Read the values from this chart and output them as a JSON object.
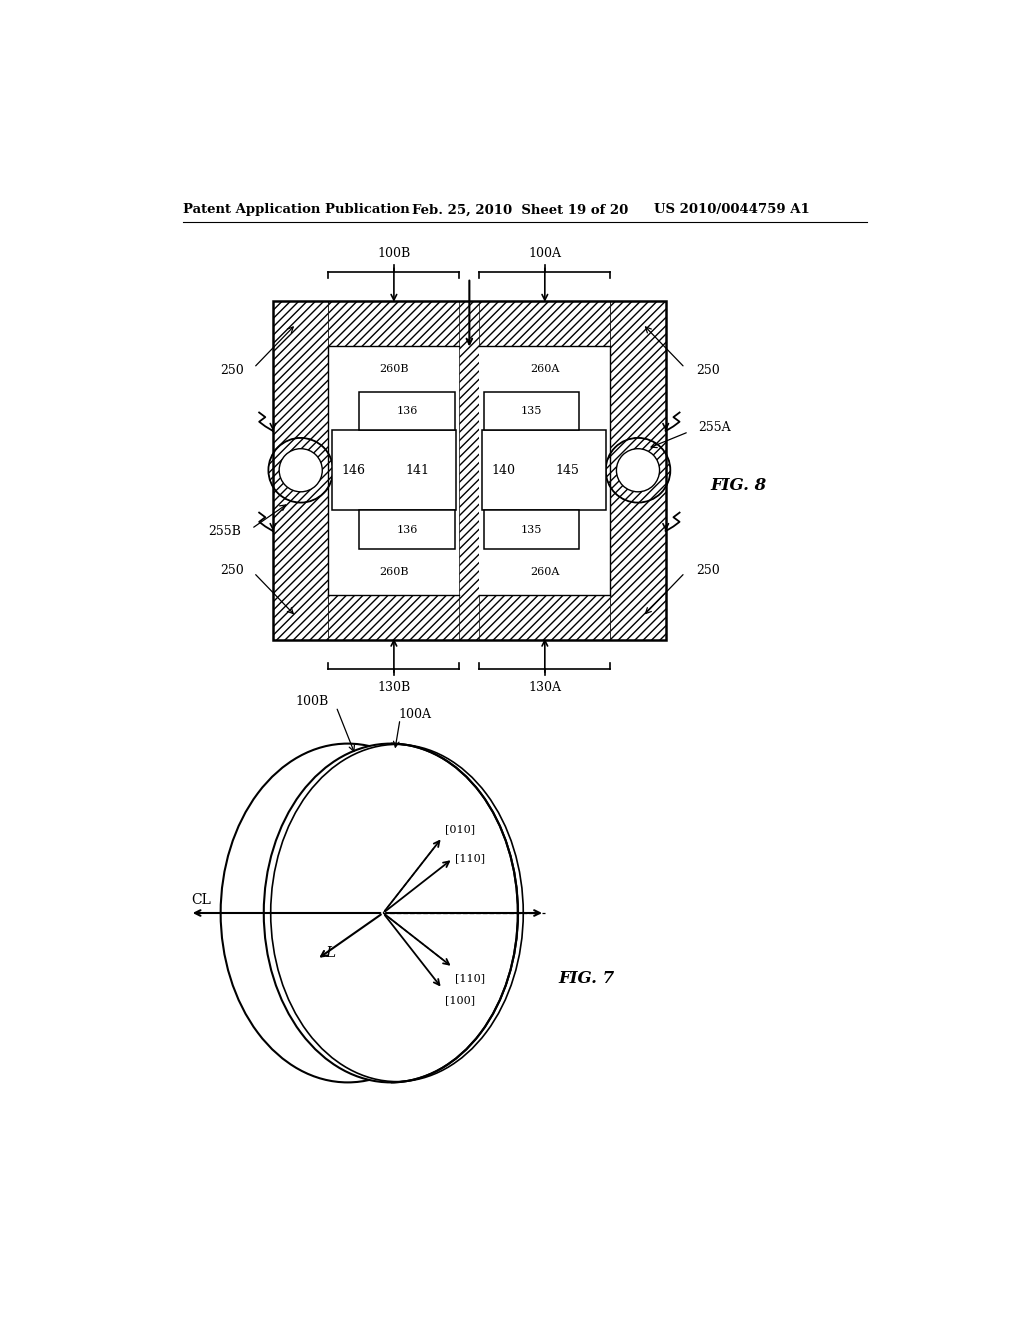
{
  "header_left": "Patent Application Publication",
  "header_mid": "Feb. 25, 2010  Sheet 19 of 20",
  "header_right": "US 2010/0044759 A1",
  "fig8_label": "FIG. 8",
  "fig7_label": "FIG. 7",
  "bg_color": "#ffffff"
}
